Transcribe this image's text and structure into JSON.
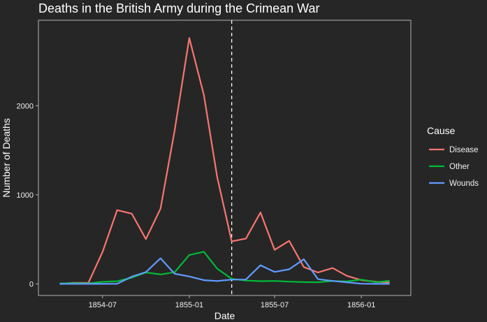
{
  "chart_data": {
    "type": "line",
    "title": "Deaths in the British Army during the Crimean War",
    "xlabel": "Date",
    "ylabel": "Number of Deaths",
    "x": [
      "1854-04",
      "1854-05",
      "1854-06",
      "1854-07",
      "1854-08",
      "1854-09",
      "1854-10",
      "1854-11",
      "1854-12",
      "1855-01",
      "1855-02",
      "1855-03",
      "1855-04",
      "1855-05",
      "1855-06",
      "1855-07",
      "1855-08",
      "1855-09",
      "1855-10",
      "1855-11",
      "1855-12",
      "1856-01",
      "1856-02",
      "1856-03"
    ],
    "x_ticks": [
      "1854-07",
      "1855-01",
      "1855-07",
      "1856-01"
    ],
    "y_ticks": [
      0,
      1000,
      2000
    ],
    "ylim": [
      -130,
      2960
    ],
    "xlim": [
      "1854-02-15",
      "1856-04-15"
    ],
    "vline": "1855-04-01",
    "grid": false,
    "legend_title": "Cause",
    "legend_position": "right",
    "series": [
      {
        "name": "Disease",
        "color": "#F8766D",
        "values": [
          1,
          12,
          11,
          359,
          828,
          788,
          503,
          844,
          1725,
          2761,
          2120,
          1205,
          477,
          508,
          802,
          382,
          483,
          189,
          128,
          178,
          91,
          42,
          24,
          15
        ]
      },
      {
        "name": "Other",
        "color": "#00BA38",
        "values": [
          5,
          9,
          6,
          23,
          30,
          70,
          128,
          106,
          131,
          324,
          361,
          172,
          57,
          37,
          31,
          33,
          25,
          20,
          18,
          32,
          28,
          48,
          19,
          35
        ]
      },
      {
        "name": "Wounds",
        "color": "#619CFF",
        "values": [
          0,
          0,
          0,
          0,
          1,
          81,
          132,
          287,
          114,
          83,
          42,
          32,
          48,
          49,
          209,
          134,
          164,
          276,
          53,
          33,
          18,
          2,
          0,
          0
        ]
      }
    ]
  }
}
